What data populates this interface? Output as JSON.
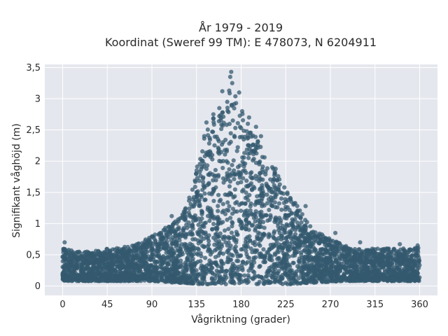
{
  "chart_data": {
    "type": "scatter",
    "title_line1": "År 1979 - 2019",
    "title_line2": "Koordinat (Sweref 99 TM): E 478073, N 6204911",
    "xlabel": "Vågriktning (grader)",
    "ylabel": "Signifikant våghöjd (m)",
    "xlim": [
      -18,
      378
    ],
    "ylim": [
      -0.15,
      3.55
    ],
    "xticks": [
      0,
      45,
      90,
      135,
      180,
      225,
      270,
      315,
      360
    ],
    "xtick_labels": [
      "0",
      "45",
      "90",
      "135",
      "180",
      "225",
      "270",
      "315",
      "360"
    ],
    "yticks": [
      0,
      0.5,
      1,
      1.5,
      2,
      2.5,
      3,
      3.5
    ],
    "ytick_labels": [
      "0",
      "0,5",
      "1",
      "1,5",
      "2",
      "2,5",
      "3",
      "3,5"
    ],
    "grid": true,
    "marker_color": "#34596f",
    "plot_bg": "#e5e7ee",
    "envelope": {
      "x": [
        0,
        15,
        30,
        45,
        60,
        75,
        90,
        105,
        120,
        130,
        140,
        150,
        160,
        170,
        180,
        190,
        200,
        210,
        220,
        230,
        240,
        250,
        260,
        270,
        285,
        300,
        315,
        330,
        345,
        360
      ],
      "y_min": [
        0.08,
        0.08,
        0.08,
        0.08,
        0.08,
        0.08,
        0.08,
        0.06,
        0.05,
        0.04,
        0.03,
        0.03,
        0.03,
        0.03,
        0.03,
        0.03,
        0.03,
        0.03,
        0.03,
        0.03,
        0.04,
        0.05,
        0.06,
        0.07,
        0.08,
        0.08,
        0.08,
        0.08,
        0.08,
        0.08
      ],
      "y_max": [
        0.6,
        0.55,
        0.55,
        0.6,
        0.62,
        0.68,
        0.8,
        0.95,
        1.15,
        1.5,
        2.3,
        2.7,
        2.9,
        3.2,
        2.85,
        2.5,
        2.25,
        2.0,
        1.75,
        1.45,
        1.2,
        0.95,
        0.85,
        0.75,
        0.65,
        0.6,
        0.6,
        0.6,
        0.6,
        0.62
      ]
    },
    "outliers": [
      {
        "x": 170,
        "y": 3.43
      },
      {
        "x": 169,
        "y": 3.35
      },
      {
        "x": 171,
        "y": 3.25
      },
      {
        "x": 161,
        "y": 3.12
      },
      {
        "x": 178,
        "y": 3.1
      },
      {
        "x": 166,
        "y": 2.95
      },
      {
        "x": 152,
        "y": 2.75
      },
      {
        "x": 158,
        "y": 2.85
      },
      {
        "x": 181,
        "y": 2.8
      },
      {
        "x": 188,
        "y": 2.7
      },
      {
        "x": 145,
        "y": 2.62
      },
      {
        "x": 195,
        "y": 2.55
      },
      {
        "x": 200,
        "y": 2.4
      },
      {
        "x": 110,
        "y": 1.12
      },
      {
        "x": 245,
        "y": 1.28
      },
      {
        "x": 275,
        "y": 0.85
      },
      {
        "x": 300,
        "y": 0.7
      },
      {
        "x": 340,
        "y": 0.67
      },
      {
        "x": 358,
        "y": 0.65
      },
      {
        "x": 2,
        "y": 0.7
      }
    ],
    "sample_count": 4200,
    "seed": 1979
  }
}
